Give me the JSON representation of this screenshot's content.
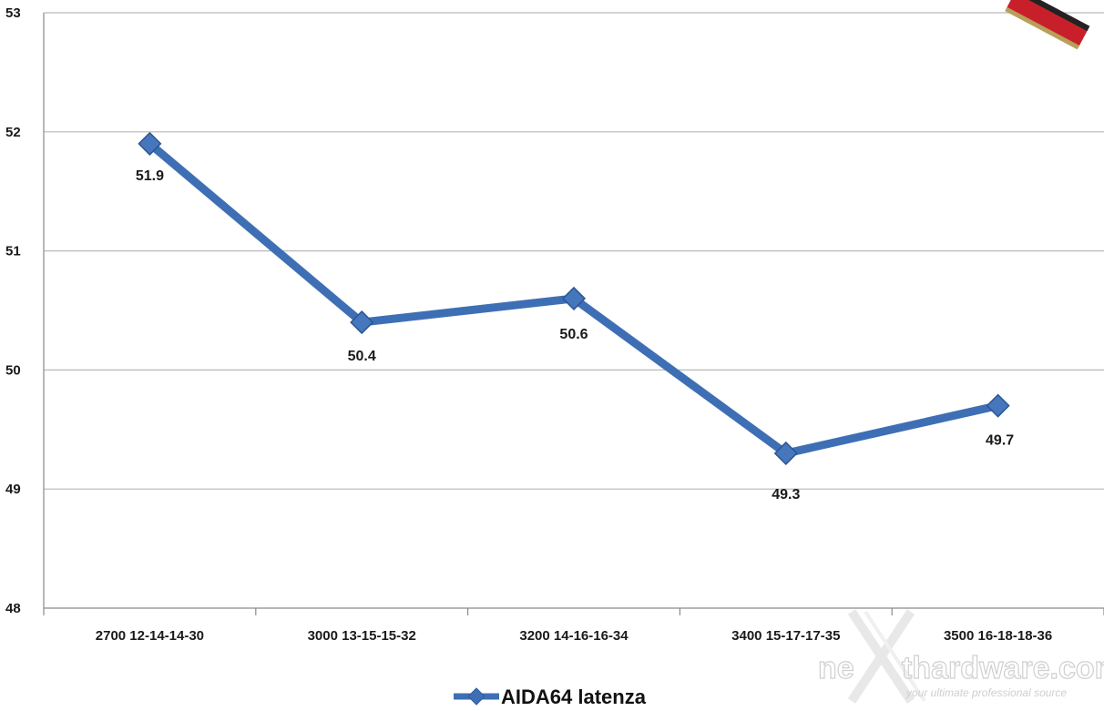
{
  "chart_data": {
    "type": "line",
    "categories": [
      "2700 12-14-14-30",
      "3000 13-15-15-32",
      "3200 14-16-16-34",
      "3400 15-17-17-35",
      "3500 16-18-18-36"
    ],
    "series": [
      {
        "name": "AIDA64 latenza",
        "values": [
          51.9,
          50.4,
          50.6,
          49.3,
          49.7
        ],
        "color": "#3e6fb5",
        "marker": "diamond"
      }
    ],
    "data_labels": [
      "51.9",
      "50.4",
      "50.6",
      "49.3",
      "49.7"
    ],
    "y_ticks": [
      "48",
      "49",
      "50",
      "51",
      "52",
      "53"
    ],
    "ylim": [
      48,
      53
    ],
    "grid": true,
    "legend_position": "bottom-center"
  },
  "watermark": {
    "brand_left": "ne",
    "brand_right": "thardware.com",
    "tagline": "your ultimate professional source"
  }
}
